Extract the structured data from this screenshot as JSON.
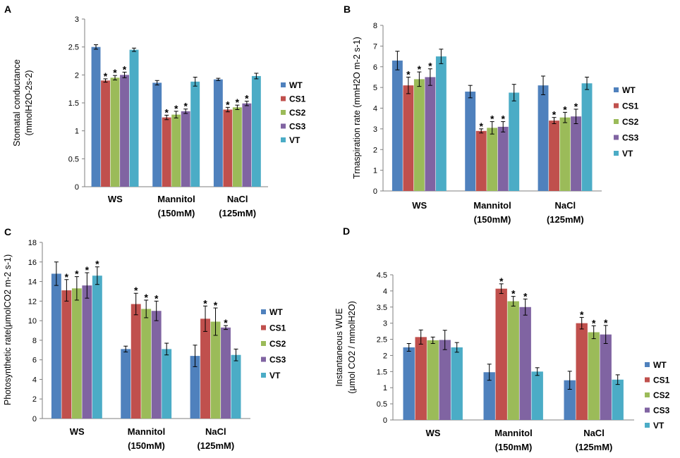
{
  "colors": {
    "WT": "#4f81bd",
    "CS1": "#c0504d",
    "CS2": "#9bbb59",
    "CS3": "#8064a2",
    "VT": "#4bacc6"
  },
  "chart_data": [
    {
      "panel": "A",
      "type": "bar",
      "ylabel_lines": [
        "Stomatal conductance",
        "(mmolH2O-2s-2)"
      ],
      "ylim": [
        0,
        3
      ],
      "yticks": [
        0,
        0.5,
        1,
        1.5,
        2,
        2.5,
        3
      ],
      "ytick_labels": [
        "0",
        "0.5",
        "1",
        "1.5",
        "2",
        "2.5",
        "3"
      ],
      "categories": [
        [
          "WS"
        ],
        [
          "Mannitol",
          "(150mM)"
        ],
        [
          "NaCl",
          "(125mM)"
        ]
      ],
      "legend": [
        "WT",
        "CS1",
        "CS2",
        "CS3",
        "VT"
      ],
      "series": [
        {
          "name": "WT",
          "values": [
            2.5,
            1.86,
            1.92
          ],
          "errors": [
            0.04,
            0.04,
            0.02
          ],
          "sig": [
            false,
            false,
            false
          ]
        },
        {
          "name": "CS1",
          "values": [
            1.9,
            1.24,
            1.38
          ],
          "errors": [
            0.03,
            0.04,
            0.04
          ],
          "sig": [
            true,
            true,
            true
          ]
        },
        {
          "name": "CS2",
          "values": [
            1.95,
            1.29,
            1.42
          ],
          "errors": [
            0.04,
            0.06,
            0.04
          ],
          "sig": [
            true,
            true,
            true
          ]
        },
        {
          "name": "CS3",
          "values": [
            2.0,
            1.35,
            1.49
          ],
          "errors": [
            0.05,
            0.04,
            0.04
          ],
          "sig": [
            true,
            true,
            true
          ]
        },
        {
          "name": "VT",
          "values": [
            2.45,
            1.88,
            1.98
          ],
          "errors": [
            0.03,
            0.08,
            0.05
          ],
          "sig": [
            false,
            false,
            false
          ]
        }
      ]
    },
    {
      "panel": "B",
      "type": "bar",
      "ylabel_lines": [
        "Trnaspiration rate (mmH2O m-2 s-1)"
      ],
      "ylim": [
        0,
        8
      ],
      "yticks": [
        0,
        1,
        2,
        3,
        4,
        5,
        6,
        7,
        8
      ],
      "ytick_labels": [
        "0",
        "1",
        "2",
        "3",
        "4",
        "5",
        "6",
        "7",
        "8"
      ],
      "categories": [
        [
          "WS"
        ],
        [
          "Mannitol",
          "(150mM)"
        ],
        [
          "NaCl",
          "(125mM)"
        ]
      ],
      "legend": [
        "WT",
        "CS1",
        "CS2",
        "CS3",
        "VT"
      ],
      "series": [
        {
          "name": "WT",
          "values": [
            6.3,
            4.8,
            5.1
          ],
          "errors": [
            0.45,
            0.3,
            0.45
          ],
          "sig": [
            false,
            false,
            false
          ]
        },
        {
          "name": "CS1",
          "values": [
            5.1,
            2.9,
            3.4
          ],
          "errors": [
            0.4,
            0.1,
            0.15
          ],
          "sig": [
            true,
            true,
            true
          ]
        },
        {
          "name": "CS2",
          "values": [
            5.4,
            3.05,
            3.55
          ],
          "errors": [
            0.35,
            0.3,
            0.25
          ],
          "sig": [
            true,
            true,
            true
          ]
        },
        {
          "name": "CS3",
          "values": [
            5.5,
            3.1,
            3.6
          ],
          "errors": [
            0.4,
            0.25,
            0.35
          ],
          "sig": [
            true,
            true,
            true
          ]
        },
        {
          "name": "VT",
          "values": [
            6.5,
            4.75,
            5.2
          ],
          "errors": [
            0.35,
            0.4,
            0.3
          ],
          "sig": [
            false,
            false,
            false
          ]
        }
      ]
    },
    {
      "panel": "C",
      "type": "bar",
      "ylabel_lines": [
        "Photosynthetic rate(μmolCO2 m-2 s-1)"
      ],
      "ylim": [
        0,
        18
      ],
      "yticks": [
        0,
        2,
        4,
        6,
        8,
        10,
        12,
        14,
        16,
        18
      ],
      "ytick_labels": [
        "0",
        "2",
        "4",
        "6",
        "8",
        "10",
        "12",
        "14",
        "16",
        "18"
      ],
      "categories": [
        [
          "WS"
        ],
        [
          "Mannitol",
          "(150mM)"
        ],
        [
          "NaCl",
          "(125mM)"
        ]
      ],
      "legend": [
        "WT",
        "CS1",
        "CS2",
        "CS3",
        "VT"
      ],
      "series": [
        {
          "name": "WT",
          "values": [
            14.8,
            7.1,
            6.4
          ],
          "errors": [
            1.2,
            0.3,
            1.1
          ],
          "sig": [
            false,
            false,
            false
          ]
        },
        {
          "name": "CS1",
          "values": [
            13.1,
            11.7,
            10.2
          ],
          "errors": [
            1.1,
            1.1,
            1.3
          ],
          "sig": [
            true,
            true,
            true
          ]
        },
        {
          "name": "CS2",
          "values": [
            13.3,
            11.2,
            9.9
          ],
          "errors": [
            1.2,
            0.9,
            1.4
          ],
          "sig": [
            true,
            true,
            true
          ]
        },
        {
          "name": "CS3",
          "values": [
            13.6,
            11.0,
            9.3
          ],
          "errors": [
            1.3,
            1.0,
            0.2
          ],
          "sig": [
            true,
            true,
            true
          ]
        },
        {
          "name": "VT",
          "values": [
            14.6,
            7.1,
            6.5
          ],
          "errors": [
            0.9,
            0.6,
            0.6
          ],
          "sig": [
            true,
            false,
            false
          ]
        }
      ]
    },
    {
      "panel": "D",
      "type": "bar",
      "ylabel_lines": [
        "Instantaneous WUE",
        "(μmol CO2 / mmolH2O)"
      ],
      "ylim": [
        0,
        4.5
      ],
      "yticks": [
        0,
        0.5,
        1,
        1.5,
        2,
        2.5,
        3,
        3.5,
        4,
        4.5
      ],
      "ytick_labels": [
        "0",
        "0.5",
        "1",
        "1.5",
        "2",
        "2.5",
        "3",
        "3.5",
        "4",
        "4.5"
      ],
      "categories": [
        [
          "WS"
        ],
        [
          "Mannitol",
          "(150mM)"
        ],
        [
          "NaCl",
          "(125mM)"
        ]
      ],
      "legend": [
        "WT",
        "CS1",
        "CS2",
        "CS3",
        "VT"
      ],
      "series": [
        {
          "name": "WT",
          "values": [
            2.25,
            1.48,
            1.23
          ],
          "errors": [
            0.12,
            0.25,
            0.28
          ],
          "sig": [
            false,
            false,
            false
          ]
        },
        {
          "name": "CS1",
          "values": [
            2.57,
            4.07,
            3.0
          ],
          "errors": [
            0.22,
            0.15,
            0.18
          ],
          "sig": [
            false,
            true,
            true
          ]
        },
        {
          "name": "CS2",
          "values": [
            2.47,
            3.68,
            2.72
          ],
          "errors": [
            0.1,
            0.15,
            0.2
          ],
          "sig": [
            false,
            true,
            true
          ]
        },
        {
          "name": "CS3",
          "values": [
            2.48,
            3.5,
            2.65
          ],
          "errors": [
            0.3,
            0.25,
            0.28
          ],
          "sig": [
            false,
            true,
            true
          ]
        },
        {
          "name": "VT",
          "values": [
            2.25,
            1.5,
            1.25
          ],
          "errors": [
            0.15,
            0.12,
            0.15
          ],
          "sig": [
            false,
            false,
            false
          ]
        }
      ]
    }
  ]
}
